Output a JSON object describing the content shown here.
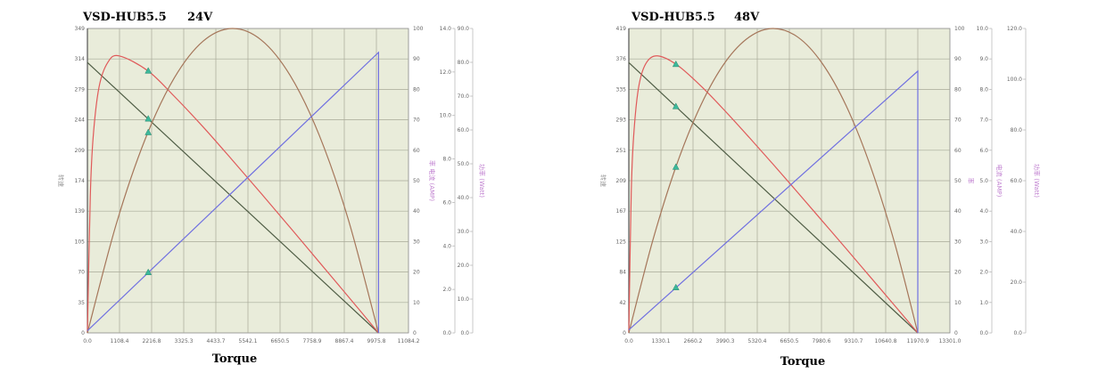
{
  "colors": {
    "plot_bg": "#e9ecda",
    "grid": "#a8aa98",
    "speed": "#4f5d45",
    "efficiency": "#e05a5a",
    "power": "#a5765a",
    "current": "#7070e0",
    "marker": "#3cb89a"
  },
  "chart_data": [
    {
      "type": "line",
      "title": "VSD-HUB5.5",
      "subtitle": "24V",
      "xlabel": "Torque",
      "grid": true,
      "x_ticks": [
        "0.0",
        "1108.4",
        "2216.8",
        "3325.3",
        "4433.7",
        "5542.1",
        "6650.5",
        "7758.9",
        "8867.4",
        "9975.8",
        "11084.2"
      ],
      "xlim": [
        0,
        11084.2
      ],
      "axes": [
        {
          "id": "speed",
          "label": "转速",
          "range": [
            0,
            349
          ],
          "ticks": [
            "0",
            "35",
            "70",
            "105",
            "139",
            "174",
            "209",
            "244",
            "279",
            "314",
            "349"
          ]
        },
        {
          "id": "efficiency",
          "label": "",
          "range": [
            0,
            100
          ],
          "ticks": [
            "0",
            "10",
            "20",
            "30",
            "40",
            "50",
            "60",
            "70",
            "80",
            "90",
            "100"
          ]
        },
        {
          "id": "current",
          "label": "率  电流 (AMP)",
          "range": [
            0,
            14
          ],
          "ticks": [
            "0.0",
            "2.0",
            "4.0",
            "6.0",
            "8.0",
            "10.0",
            "12.0",
            "14.0"
          ]
        },
        {
          "id": "power",
          "label": "功率 (Watt)",
          "range": [
            0,
            90
          ],
          "ticks": [
            "0.0",
            "10.0",
            "20.0",
            "30.0",
            "40.0",
            "50.0",
            "60.0",
            "70.0",
            "80.0",
            "90.0"
          ]
        }
      ],
      "series": [
        {
          "axis": "speed",
          "color_key": "speed",
          "x": [
            0,
            10050
          ],
          "y": [
            310,
            0
          ]
        },
        {
          "axis": "efficiency",
          "color_key": "efficiency",
          "x": [
            0,
            100,
            200,
            400,
            700,
            1100,
            2100,
            3000,
            4000,
            5000,
            6000,
            7000,
            8000,
            9000,
            10050
          ],
          "y": [
            0,
            45,
            64.5,
            80.7,
            88.8,
            91,
            86,
            77.7,
            67.6,
            56.8,
            45.8,
            34.6,
            23.3,
            12,
            0
          ]
        },
        {
          "axis": "power",
          "color_key": "power",
          "x": [
            0,
            1000,
            2000,
            3000,
            4000,
            5000,
            6000,
            7000,
            8000,
            9000,
            10050
          ],
          "y": [
            0,
            32.3,
            57.4,
            75.4,
            86.3,
            90,
            86.6,
            76.1,
            58.5,
            33.7,
            0
          ]
        },
        {
          "axis": "current",
          "color_key": "current",
          "x": [
            0,
            10050,
            10050
          ],
          "y": [
            0.1,
            12.9,
            0
          ]
        }
      ],
      "marker_torque": 2100
    },
    {
      "type": "line",
      "title": "VSD-HUB5.5",
      "subtitle": "48V",
      "xlabel": "Torque",
      "grid": true,
      "x_ticks": [
        "0.0",
        "1330.1",
        "2660.2",
        "3990.3",
        "5320.4",
        "6650.5",
        "7980.6",
        "9310.7",
        "10640.8",
        "11970.9",
        "13301.0"
      ],
      "xlim": [
        0,
        13301.0
      ],
      "axes": [
        {
          "id": "speed",
          "label": "转速",
          "range": [
            0,
            419
          ],
          "ticks": [
            "0",
            "42",
            "84",
            "125",
            "167",
            "209",
            "251",
            "293",
            "335",
            "376",
            "419"
          ]
        },
        {
          "id": "efficiency",
          "label": "率",
          "range": [
            0,
            100
          ],
          "ticks": [
            "0",
            "10",
            "20",
            "30",
            "40",
            "50",
            "60",
            "70",
            "80",
            "90",
            "100"
          ]
        },
        {
          "id": "current",
          "label": "电流 (AMP)",
          "range": [
            0,
            10
          ],
          "ticks": [
            "0.0",
            "1.0",
            "2.0",
            "3.0",
            "4.0",
            "5.0",
            "6.0",
            "7.0",
            "8.0",
            "9.0",
            "10.0"
          ]
        },
        {
          "id": "power",
          "label": "功率 (Watt)",
          "range": [
            0,
            120
          ],
          "ticks": [
            "0.0",
            "20.0",
            "40.0",
            "60.0",
            "80.0",
            "100.0",
            "120.0"
          ]
        }
      ],
      "series": [
        {
          "axis": "speed",
          "color_key": "speed",
          "x": [
            0,
            11970.9
          ],
          "y": [
            372,
            0
          ]
        },
        {
          "axis": "efficiency",
          "color_key": "efficiency",
          "x": [
            0,
            100,
            200,
            400,
            700,
            1180,
            2000,
            3000,
            4000,
            5000,
            6000,
            7000,
            8000,
            9000,
            10000,
            11000,
            11970.9
          ],
          "y": [
            0,
            45.9,
            64.6,
            80.4,
            88.4,
            91,
            88,
            81,
            72.8,
            64.1,
            55.2,
            46.1,
            36.9,
            27.7,
            18.4,
            9.1,
            0
          ]
        },
        {
          "axis": "power",
          "color_key": "power",
          "x": [
            0,
            1000,
            2000,
            3000,
            4000,
            5000,
            5985,
            7000,
            8000,
            9000,
            10000,
            11000,
            11970.9
          ],
          "y": [
            0,
            36.7,
            66.8,
            90.1,
            106.8,
            116.7,
            120,
            116.6,
            106.4,
            89.6,
            66,
            35.8,
            0
          ]
        },
        {
          "axis": "current",
          "color_key": "current",
          "x": [
            0,
            11970.9,
            11970.9
          ],
          "y": [
            0.1,
            8.6,
            0
          ]
        }
      ],
      "marker_torque": 1950
    }
  ]
}
